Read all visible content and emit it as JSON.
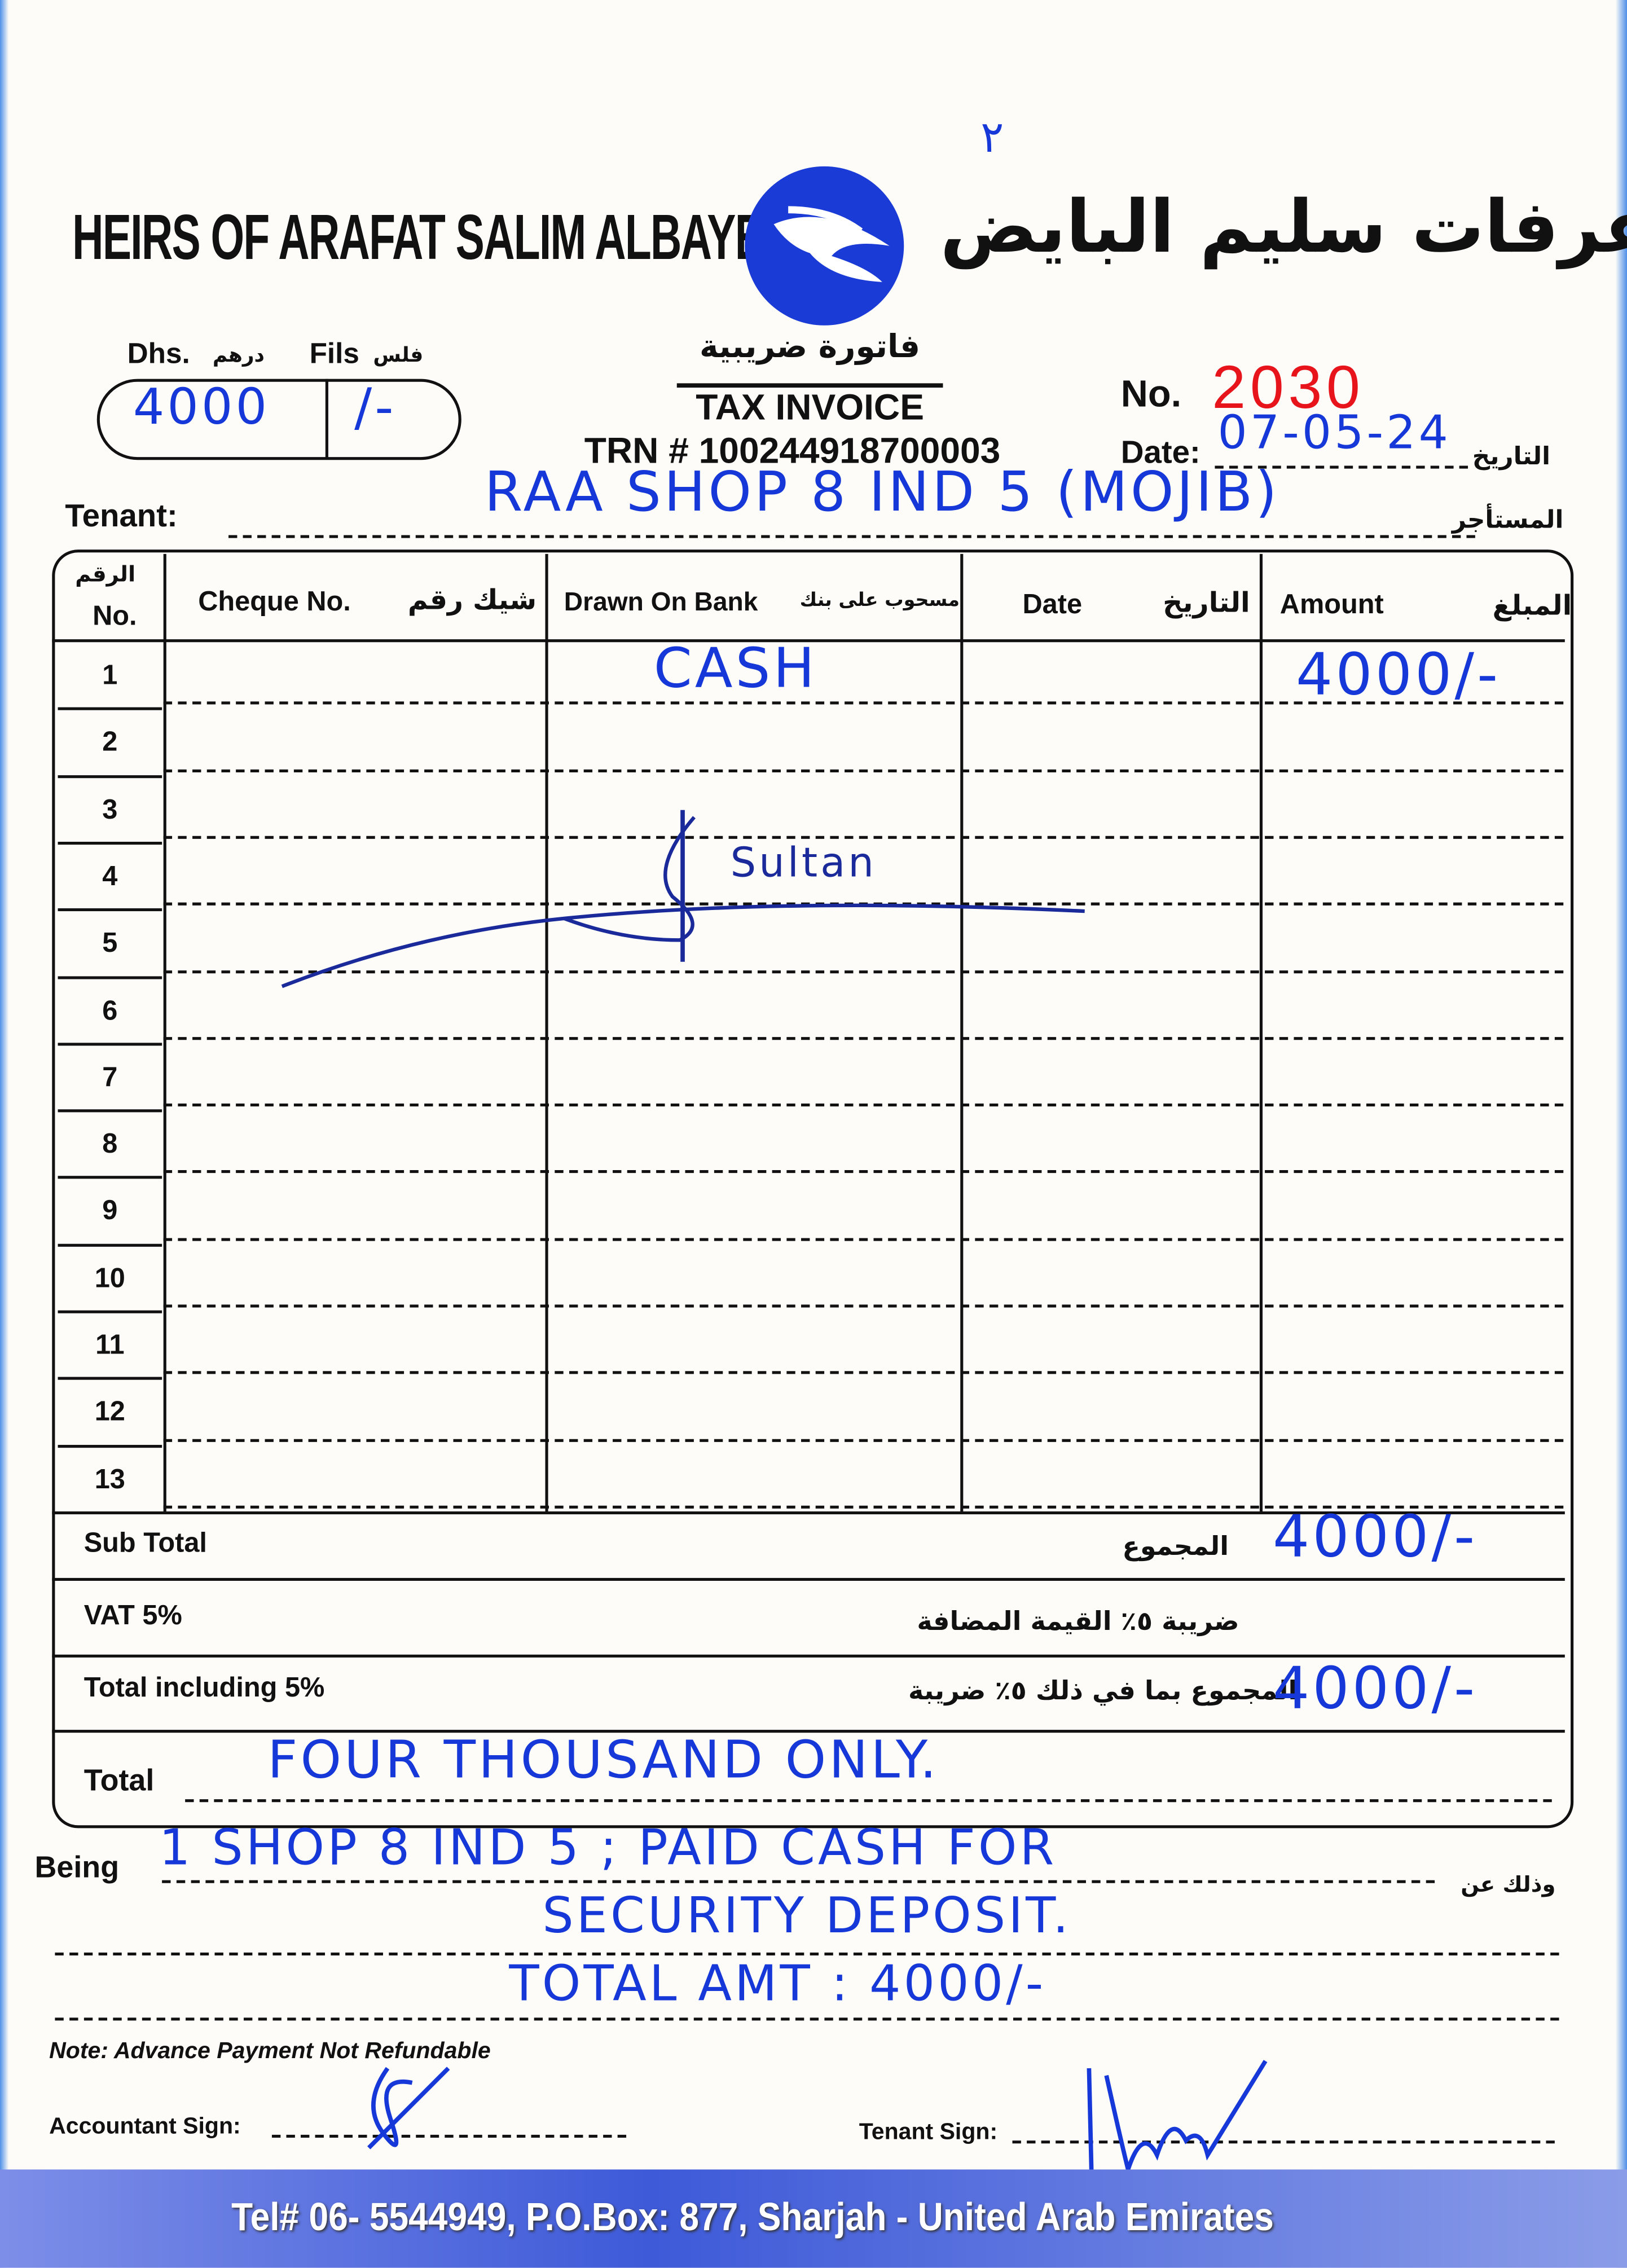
{
  "header": {
    "company_en": "HEIRS OF ARAFAT SALIM ALBAYEDH",
    "company_ar": "ورثة عرفات سليم البايض",
    "logo": "bird-in-circle-logo",
    "page_mark": "٢",
    "doc_title_ar": "فاتورة ضريبية",
    "doc_title": "TAX INVOICE",
    "trn": "TRN # 100244918700003"
  },
  "amount_box": {
    "dhs_label": "Dhs.",
    "dhs_label_ar": "درهم",
    "fils_label": "Fils",
    "fils_label_ar": "فلس",
    "dhs_value": "4000",
    "fils_value": "/-"
  },
  "invoice": {
    "no_label": "No.",
    "no_value": "2030",
    "date_label": "Date:",
    "date_label_ar": "التاريخ",
    "date_value": "07-05-24",
    "tenant_label": "Tenant:",
    "tenant_label_ar": "المستأجر",
    "tenant_value": "RAA SHOP 8 IND 5 (MOJIB)"
  },
  "table": {
    "headers": {
      "no_ar": "الرقم",
      "no": "No.",
      "cheque": "Cheque No.",
      "cheque_ar": "شيك رقم",
      "bank": "Drawn On Bank",
      "bank_ar": "مسحوب على بنك",
      "date": "Date",
      "date_ar": "التاريخ",
      "amount": "Amount",
      "amount_ar": "المبلغ"
    },
    "rows": [
      {
        "no": "1",
        "cheque": "",
        "bank": "CASH",
        "date": "",
        "amount": "4000/-"
      },
      {
        "no": "2"
      },
      {
        "no": "3"
      },
      {
        "no": "4"
      },
      {
        "no": "5"
      },
      {
        "no": "6"
      },
      {
        "no": "7"
      },
      {
        "no": "8"
      },
      {
        "no": "9"
      },
      {
        "no": "10"
      },
      {
        "no": "11"
      },
      {
        "no": "12"
      },
      {
        "no": "13"
      }
    ],
    "signature_text": "Sultan"
  },
  "summary": {
    "subtotal_label": "Sub Total",
    "subtotal_label_ar": "المجموع",
    "subtotal_value": "4000/-",
    "vat_label": "VAT 5%",
    "vat_label_ar": "ضريبة ٥٪ القيمة المضافة",
    "vat_value": "",
    "total_incl_label": "Total including 5%",
    "total_incl_label_ar": "المجموع بما في ذلك ٥٪ ضريبة",
    "total_incl_value": "4000/-",
    "total_label": "Total",
    "total_words": "FOUR THOUSAND ONLY."
  },
  "being": {
    "label": "Being",
    "label_ar": "وذلك عن",
    "lines": [
      "1 SHOP 8 IND 5 ; PAID CASH FOR",
      "SECURITY DEPOSIT.",
      "TOTAL AMT : 4000/-"
    ]
  },
  "signatures": {
    "note": "Note: Advance Payment Not Refundable",
    "accountant_label": "Accountant Sign:",
    "tenant_label": "Tenant Sign:"
  },
  "footer": {
    "contact": "Tel# 06- 5544949, P.O.Box: 877, Sharjah - United Arab Emirates"
  },
  "colors": {
    "ink_blue": "#1638d8",
    "number_red": "#e8141c",
    "logo_blue": "#1a3bd6"
  }
}
